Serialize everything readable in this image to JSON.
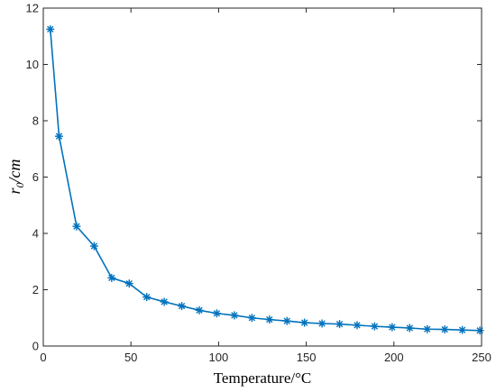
{
  "chart_data": {
    "type": "line",
    "title": "",
    "xlabel": "Temperature/°C",
    "ylabel_main": "r",
    "ylabel_sub": "0",
    "ylabel_rest": "/cm",
    "xlim": [
      0,
      250
    ],
    "ylim": [
      0,
      12
    ],
    "xticks": [
      0,
      50,
      100,
      150,
      200,
      250
    ],
    "yticks": [
      0,
      2,
      4,
      6,
      8,
      10,
      12
    ],
    "grid": false,
    "legend": "none",
    "series": [
      {
        "color": "#0072BD",
        "marker": "asterisk",
        "x": [
          4,
          9,
          19,
          29,
          39,
          49,
          59,
          69,
          79,
          89,
          99,
          109,
          119,
          129,
          139,
          149,
          159,
          169,
          179,
          189,
          199,
          209,
          219,
          229,
          239,
          249
        ],
        "y": [
          11.25,
          7.45,
          4.25,
          3.55,
          2.42,
          2.22,
          1.74,
          1.57,
          1.42,
          1.27,
          1.16,
          1.09,
          1.0,
          0.94,
          0.89,
          0.83,
          0.8,
          0.78,
          0.74,
          0.7,
          0.67,
          0.64,
          0.6,
          0.59,
          0.57,
          0.55
        ]
      }
    ]
  }
}
